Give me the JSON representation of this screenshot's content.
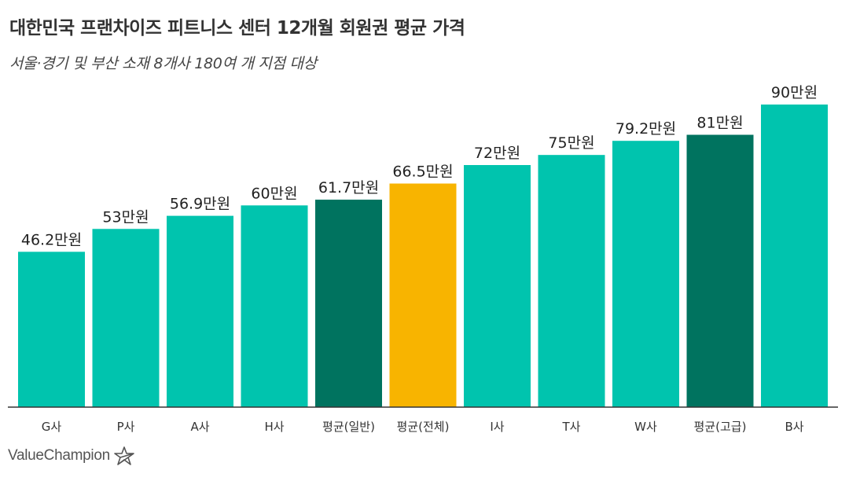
{
  "chart_data": {
    "type": "bar",
    "title": "대한민국 프랜차이즈 피트니스 센터 12개월 회원권 평균 가격",
    "subtitle": "서울·경기 및 부산 소재 8개사 180여 개 지점 대상",
    "categories": [
      "G사",
      "P사",
      "A사",
      "H사",
      "평균(일반)",
      "평균(전체)",
      "I사",
      "T사",
      "W사",
      "평균(고급)",
      "B사"
    ],
    "values": [
      46.2,
      53,
      56.9,
      60,
      61.7,
      66.5,
      72,
      75,
      79.2,
      81,
      90
    ],
    "value_labels": [
      "46.2만원",
      "53만원",
      "56.9만원",
      "60만원",
      "61.7만원",
      "66.5만원",
      "72만원",
      "75만원",
      "79.2만원",
      "81만원",
      "90만원"
    ],
    "bar_colors": [
      "#00c4ae",
      "#00c4ae",
      "#00c4ae",
      "#00c4ae",
      "#00735f",
      "#f8b400",
      "#00c4ae",
      "#00c4ae",
      "#00c4ae",
      "#00735f",
      "#00c4ae"
    ],
    "xlabel": "",
    "ylabel": "",
    "ylim": [
      0,
      90
    ],
    "grid": false
  },
  "brand": {
    "name": "ValueChampion"
  }
}
